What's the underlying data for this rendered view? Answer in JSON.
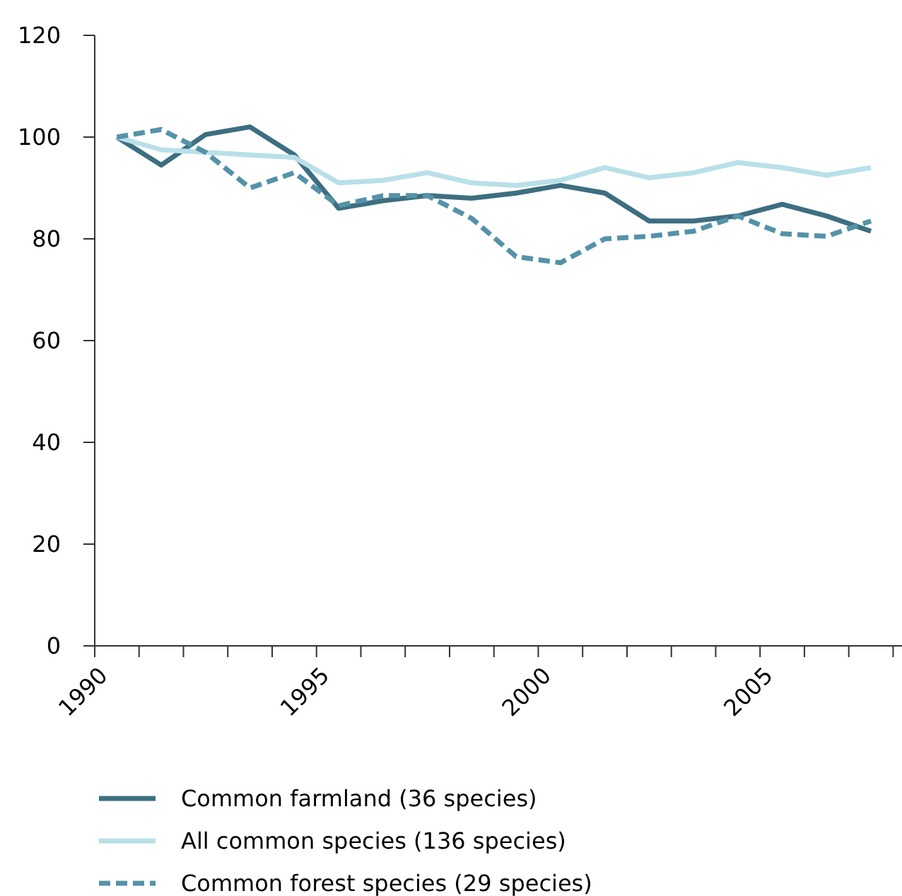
{
  "chart_data": {
    "type": "line",
    "x": [
      1990.5,
      1991.5,
      1992.5,
      1993.5,
      1994.5,
      1995.5,
      1996.5,
      1997.5,
      1998.5,
      1999.5,
      2000.5,
      2001.5,
      2002.5,
      2003.5,
      2004.5,
      2005.5,
      2006.5,
      2007.5
    ],
    "xlim": [
      1990,
      2008.2
    ],
    "xticks": [
      1990,
      {
        "value": 1991,
        "label": null
      },
      {
        "value": 1992,
        "label": null
      },
      {
        "value": 1993,
        "label": null
      },
      {
        "value": 1994,
        "label": null
      },
      1995,
      {
        "value": 1996,
        "label": null
      },
      {
        "value": 1997,
        "label": null
      },
      {
        "value": 1998,
        "label": null
      },
      {
        "value": 1999,
        "label": null
      },
      2000,
      {
        "value": 2001,
        "label": null
      },
      {
        "value": 2002,
        "label": null
      },
      {
        "value": 2003,
        "label": null
      },
      {
        "value": 2004,
        "label": null
      },
      2005,
      {
        "value": 2006,
        "label": null
      },
      {
        "value": 2007,
        "label": null
      },
      {
        "value": 2008,
        "label": null
      }
    ],
    "ylim": [
      0,
      120
    ],
    "yticks": [
      0,
      20,
      40,
      60,
      80,
      100,
      120
    ],
    "grid": false,
    "legend": "bottom",
    "marker": "none",
    "series": [
      {
        "name": "Common farmland (36 species)",
        "color": "#3d6f80",
        "line_style": "solid",
        "values": [
          100,
          94.5,
          100.5,
          102,
          96.5,
          86,
          87.5,
          88.5,
          88,
          89,
          90.5,
          89,
          83.5,
          83.5,
          84.5,
          86.8,
          84.5,
          81.5
        ]
      },
      {
        "name": "All common species (136 species)",
        "color": "#b9e0e8",
        "line_style": "solid",
        "values": [
          100,
          97.5,
          97,
          96.5,
          96,
          91,
          91.5,
          93,
          91,
          90.5,
          91.5,
          94,
          92,
          93,
          95,
          94,
          92.5,
          94
        ]
      },
      {
        "name": "Common forest species (29 species)",
        "color": "#5592a8",
        "line_style": "dashed",
        "values": [
          100,
          101.5,
          97,
          90,
          93,
          86.5,
          88.5,
          88.5,
          84,
          76.5,
          75.3,
          80,
          80.5,
          81.5,
          84.5,
          81,
          80.5,
          83.5
        ]
      }
    ]
  }
}
